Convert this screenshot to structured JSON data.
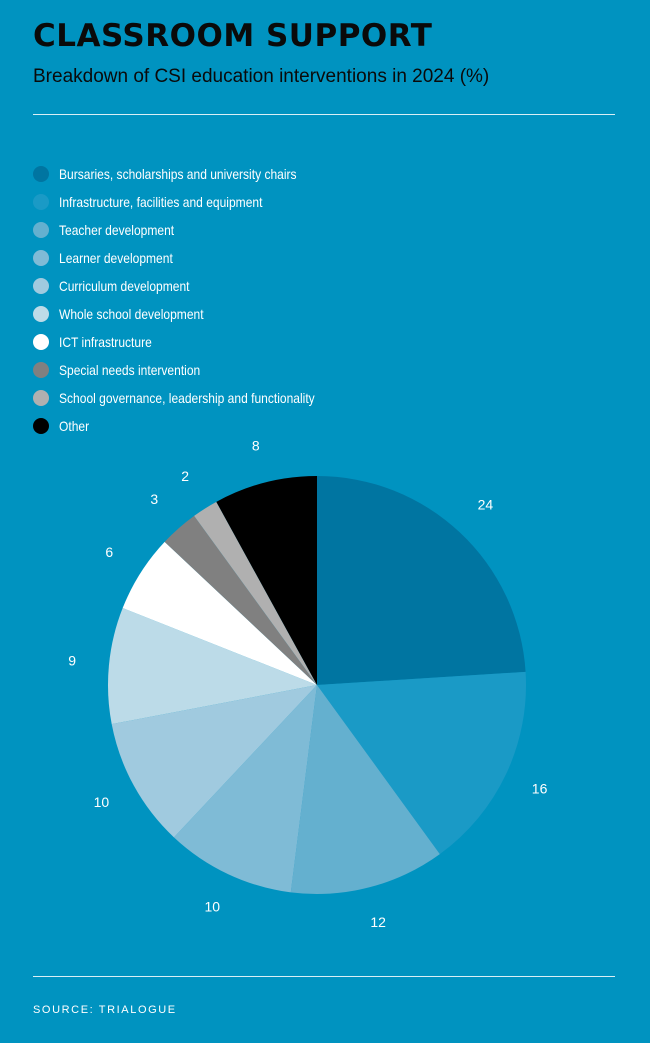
{
  "title": "CLASSROOM SUPPORT",
  "subtitle": "Breakdown of CSI education interventions in 2024 (%)",
  "source": "SOURCE: TRIALOGUE",
  "chart_data": {
    "type": "pie",
    "title": "CLASSROOM SUPPORT",
    "subtitle": "Breakdown of CSI education interventions in 2024 (%)",
    "legend_position": "top",
    "series": [
      {
        "name": "Bursaries, scholarships and university chairs",
        "value": 24,
        "label": "24",
        "color": "#0075a1"
      },
      {
        "name": "Infrastructure, facilities and equipment",
        "value": 16,
        "label": "16",
        "color": "#1a9ac6"
      },
      {
        "name": "Teacher development",
        "value": 12,
        "label": "12",
        "color": "#64b0cf"
      },
      {
        "name": "Learner development",
        "value": 10,
        "label": "10",
        "color": "#7fbbd6"
      },
      {
        "name": "Curriculum development",
        "value": 10,
        "label": "10",
        "color": "#a0cadf"
      },
      {
        "name": "Whole school development",
        "value": 9,
        "label": "9",
        "color": "#bcdbe8"
      },
      {
        "name": "ICT infrastructure",
        "value": 6,
        "label": "6",
        "color": "#ffffff"
      },
      {
        "name": "Special needs intervention",
        "value": 3,
        "label": "3",
        "color": "#808080"
      },
      {
        "name": "School governance, leadership and functionality",
        "value": 2,
        "label": "2",
        "color": "#b0b0b0"
      },
      {
        "name": "Other",
        "value": 8,
        "label": "8",
        "color": "#000000"
      }
    ]
  }
}
